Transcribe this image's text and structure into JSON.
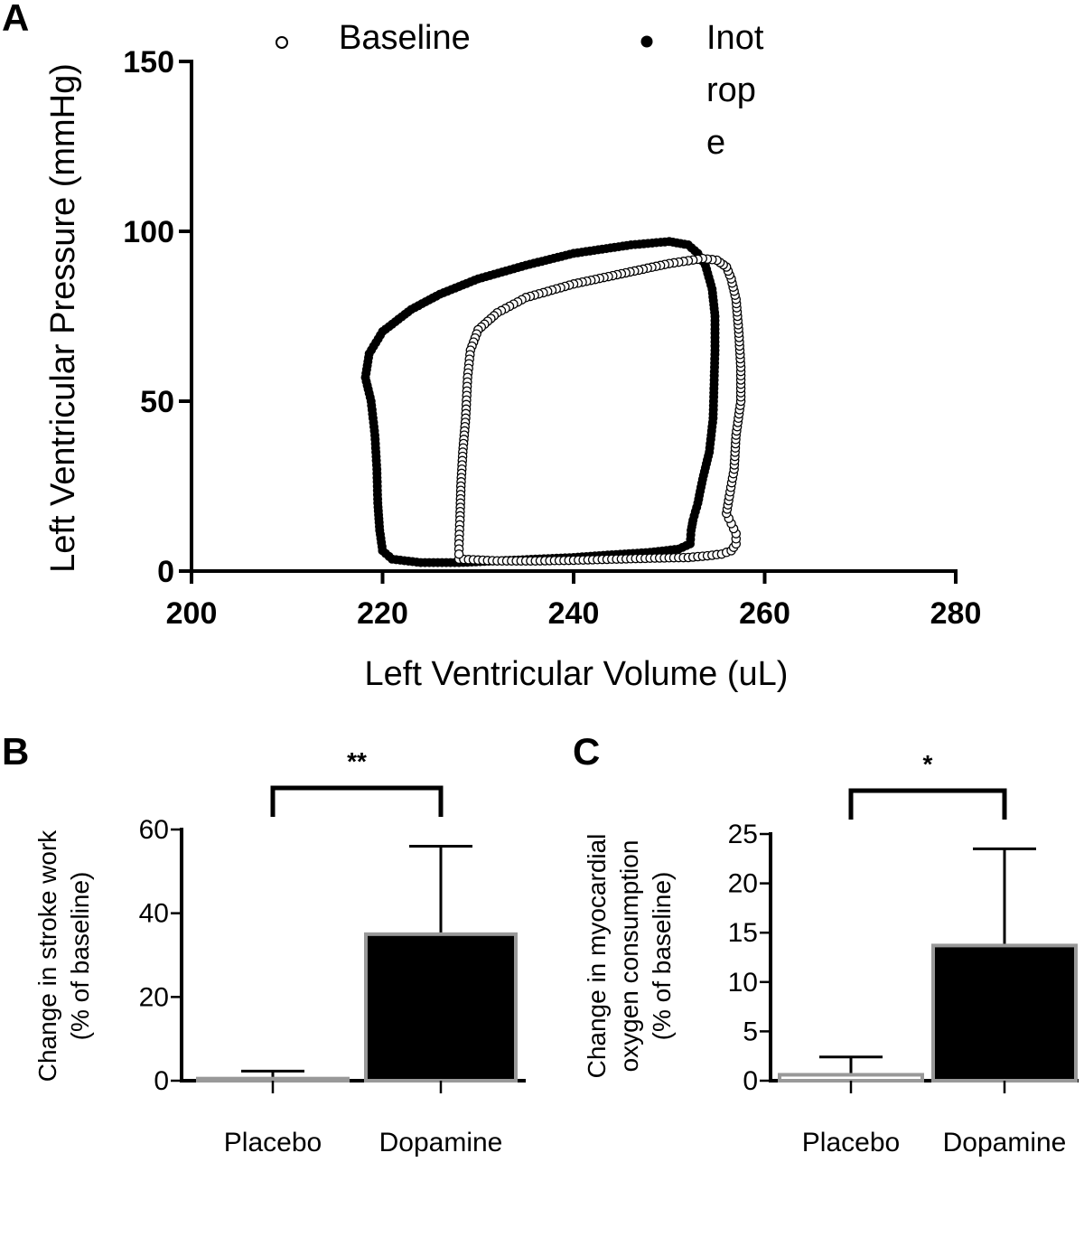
{
  "chart_data": [
    {
      "panel": "A",
      "type": "scatter",
      "xlabel": "Left Ventricular Volume (uL)",
      "ylabel": "Left Ventricular Pressure (mmHg)",
      "xlim": [
        200,
        280
      ],
      "ylim": [
        0,
        150
      ],
      "xticks": [
        "200",
        "220",
        "240",
        "260",
        "280"
      ],
      "yticks": [
        "0",
        "50",
        "100",
        "150"
      ],
      "legend_placement": "top",
      "legend": [
        "Baseline",
        "Inot\nrop\ne"
      ],
      "series": [
        {
          "name": "Baseline",
          "marker": "open-circle",
          "color": "#000000",
          "points": [
            [
              228.0,
              3.5
            ],
            [
              232,
              3
            ],
            [
              236,
              3
            ],
            [
              240,
              3.2
            ],
            [
              244,
              3.5
            ],
            [
              248,
              3.8
            ],
            [
              252,
              4
            ],
            [
              254,
              4.5
            ],
            [
              255.5,
              5
            ],
            [
              256.5,
              6
            ],
            [
              257,
              8
            ],
            [
              257,
              11
            ],
            [
              256.5,
              14
            ],
            [
              256,
              17
            ],
            [
              256.3,
              22
            ],
            [
              256.8,
              30
            ],
            [
              257,
              40
            ],
            [
              257.5,
              50
            ],
            [
              257.5,
              60
            ],
            [
              257.3,
              70
            ],
            [
              257.0,
              80
            ],
            [
              256.5,
              86
            ],
            [
              256,
              89.5
            ],
            [
              255,
              91.5
            ],
            [
              253.5,
              92
            ],
            [
              250,
              90.5
            ],
            [
              245,
              87.5
            ],
            [
              240,
              84.5
            ],
            [
              235,
              80.5
            ],
            [
              232,
              76
            ],
            [
              230,
              71
            ],
            [
              229.2,
              65
            ],
            [
              228.9,
              57
            ],
            [
              228.7,
              45
            ],
            [
              228.4,
              35
            ],
            [
              228.2,
              25
            ],
            [
              228.1,
              15
            ],
            [
              228.0,
              8
            ]
          ]
        },
        {
          "name": "Inot\nrop\ne",
          "marker": "filled-circle",
          "color": "#000000",
          "points": [
            [
              220.0,
              6
            ],
            [
              221,
              3.5
            ],
            [
              224,
              2.5
            ],
            [
              228,
              2.5
            ],
            [
              232,
              3
            ],
            [
              236,
              3.5
            ],
            [
              240,
              4
            ],
            [
              244,
              4.8
            ],
            [
              248,
              5.5
            ],
            [
              251,
              6.5
            ],
            [
              252.2,
              8
            ],
            [
              252.3,
              12
            ],
            [
              252.5,
              15
            ],
            [
              253,
              20
            ],
            [
              253.5,
              27
            ],
            [
              254.2,
              35
            ],
            [
              254.6,
              45
            ],
            [
              254.7,
              55
            ],
            [
              254.8,
              65
            ],
            [
              254.8,
              75
            ],
            [
              254.5,
              83
            ],
            [
              253.8,
              90
            ],
            [
              253,
              93.5
            ],
            [
              252,
              96
            ],
            [
              250,
              97
            ],
            [
              246,
              96
            ],
            [
              240,
              93.5
            ],
            [
              235,
              90
            ],
            [
              230,
              86
            ],
            [
              226,
              81.5
            ],
            [
              223,
              77
            ],
            [
              220,
              70.5
            ],
            [
              218.6,
              64
            ],
            [
              218.2,
              57
            ],
            [
              218.8,
              50
            ],
            [
              219.2,
              40
            ],
            [
              219.4,
              30
            ],
            [
              219.5,
              20
            ],
            [
              219.7,
              12
            ],
            [
              220.0,
              6
            ]
          ]
        }
      ]
    },
    {
      "panel": "B",
      "type": "bar",
      "categories": [
        "Placebo",
        "Dopamine"
      ],
      "values": [
        0.5,
        35
      ],
      "error_upper": [
        2.3,
        56
      ],
      "ylabel": "Change in stroke work\n(% of baseline)",
      "ylim": [
        0,
        60
      ],
      "yticks": [
        "0",
        "20",
        "40",
        "60"
      ],
      "significance": "**",
      "bar_fill": [
        "#000000",
        "#000000"
      ],
      "bar_edge": "#999999"
    },
    {
      "panel": "C",
      "type": "bar",
      "categories": [
        "Placebo",
        "Dopamine"
      ],
      "values": [
        0.6,
        13.7
      ],
      "error_upper": [
        2.4,
        23.5
      ],
      "ylabel": "Change in myocardial\noxygen consumption\n(% of baseline)",
      "ylim": [
        0,
        25
      ],
      "yticks": [
        "0",
        "5",
        "10",
        "15",
        "20",
        "25"
      ],
      "significance": "*",
      "bar_fill": [
        "#ffffff",
        "#000000"
      ],
      "bar_edge": "#999999"
    }
  ]
}
